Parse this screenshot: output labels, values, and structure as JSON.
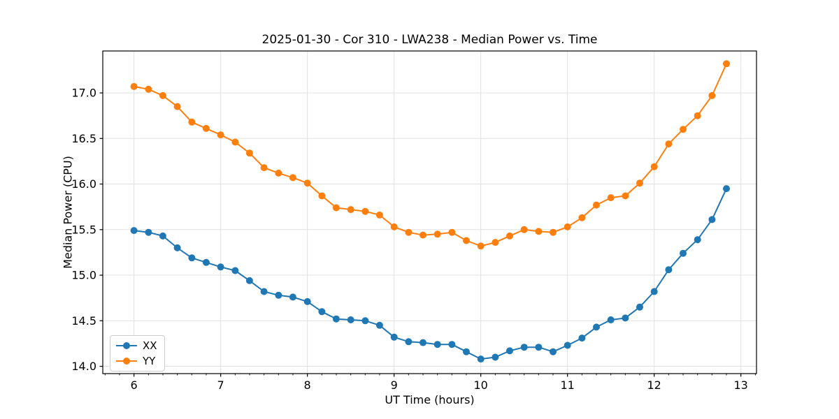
{
  "title": "2025-01-30 - Cor 310 - LWA238 - Median Power vs. Time",
  "colors": {
    "background": "#ffffff",
    "grid": "#e0e0e0",
    "spine": "#000000",
    "tick": "#000000",
    "text": "#000000",
    "series_xx": "#1f77b4",
    "series_yy": "#ff7f0e"
  },
  "chart_data": {
    "type": "line",
    "title": "2025-01-30 - Cor 310 - LWA238 - Median Power vs. Time",
    "xlabel": "UT Time (hours)",
    "ylabel": "Median Power (CPU)",
    "xlim": [
      5.64,
      13.18
    ],
    "ylim": [
      13.92,
      17.46
    ],
    "x_major_ticks": [
      6,
      7,
      8,
      9,
      10,
      11,
      12,
      13
    ],
    "x_minor_tick_step": 0.16667,
    "y_major_ticks": [
      14.0,
      14.5,
      15.0,
      15.5,
      16.0,
      16.5,
      17.0
    ],
    "grid": true,
    "legend_position": "lower-left",
    "marker": "circle",
    "x": [
      6.0,
      6.167,
      6.333,
      6.5,
      6.667,
      6.833,
      7.0,
      7.167,
      7.333,
      7.5,
      7.667,
      7.833,
      8.0,
      8.167,
      8.333,
      8.5,
      8.667,
      8.833,
      9.0,
      9.167,
      9.333,
      9.5,
      9.667,
      9.833,
      10.0,
      10.167,
      10.333,
      10.5,
      10.667,
      10.833,
      11.0,
      11.167,
      11.333,
      11.5,
      11.667,
      11.833,
      12.0,
      12.167,
      12.333,
      12.5,
      12.667,
      12.833
    ],
    "series": [
      {
        "name": "XX",
        "color": "#1f77b4",
        "values": [
          15.49,
          15.47,
          15.43,
          15.3,
          15.19,
          15.14,
          15.09,
          15.05,
          14.94,
          14.82,
          14.78,
          14.76,
          14.71,
          14.6,
          14.52,
          14.51,
          14.5,
          14.45,
          14.32,
          14.27,
          14.26,
          14.24,
          14.24,
          14.16,
          14.08,
          14.1,
          14.17,
          14.21,
          14.21,
          14.16,
          14.23,
          14.31,
          14.43,
          14.51,
          14.53,
          14.65,
          14.82,
          15.06,
          15.24,
          15.39,
          15.61,
          15.95
        ]
      },
      {
        "name": "YY",
        "color": "#ff7f0e",
        "values": [
          17.07,
          17.04,
          16.97,
          16.85,
          16.68,
          16.61,
          16.54,
          16.46,
          16.34,
          16.18,
          16.12,
          16.07,
          16.01,
          15.87,
          15.74,
          15.72,
          15.7,
          15.66,
          15.53,
          15.47,
          15.44,
          15.45,
          15.47,
          15.38,
          15.32,
          15.36,
          15.43,
          15.5,
          15.48,
          15.47,
          15.53,
          15.63,
          15.77,
          15.85,
          15.87,
          16.01,
          16.19,
          16.44,
          16.6,
          16.75,
          16.97,
          17.32
        ]
      }
    ]
  }
}
